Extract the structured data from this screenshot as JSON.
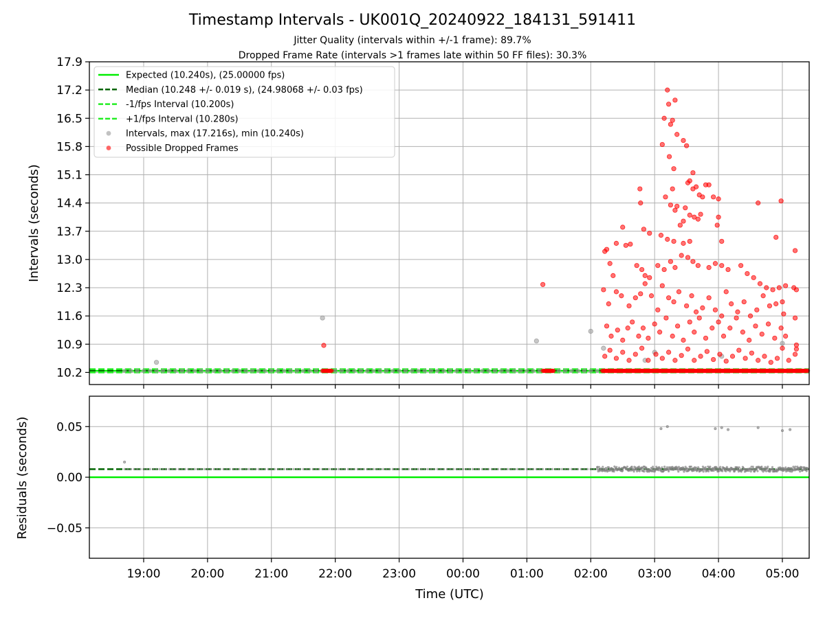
{
  "figure": {
    "title": "Timestamp Intervals - UK001Q_20240922_184131_591411",
    "subtitle_1": "Jitter Quality (intervals within +/-1 frame): 89.7%",
    "subtitle_2": "Dropped Frame Rate (intervals >1 frames late within 50 FF files): 30.3%"
  },
  "chart_data": [
    {
      "type": "scatter",
      "panel": "top",
      "ylabel": "Intervals (seconds)",
      "xlabel": "",
      "xlim_hours": [
        18.15,
        29.42
      ],
      "ylim": [
        9.9,
        17.9
      ],
      "yticks": [
        "10.2",
        "10.9",
        "11.6",
        "12.3",
        "13.0",
        "13.7",
        "14.4",
        "15.1",
        "15.8",
        "16.5",
        "17.2",
        "17.9"
      ],
      "ytick_values": [
        10.2,
        10.9,
        11.6,
        12.3,
        13.0,
        13.7,
        14.4,
        15.1,
        15.8,
        16.5,
        17.2,
        17.9
      ],
      "xticks": [
        "19:00",
        "20:00",
        "21:00",
        "22:00",
        "23:00",
        "00:00",
        "01:00",
        "02:00",
        "03:00",
        "04:00",
        "05:00"
      ],
      "xtick_values_hours": [
        19,
        20,
        21,
        22,
        23,
        24,
        25,
        26,
        27,
        28,
        29
      ],
      "grid": true,
      "legend_position": "top-left",
      "lines": [
        {
          "name": "Expected (10.240s), (25.00000 fps)",
          "y": 10.24,
          "color": "#00ee00",
          "style": "solid"
        },
        {
          "name": "Median (10.248 +/- 0.019 s), (24.98068 +/- 0.03 fps)",
          "y": 10.248,
          "color": "#006400",
          "style": "dashed"
        },
        {
          "name": "-1/fps Interval (10.200s)",
          "y": 10.2,
          "color": "#22ee22",
          "style": "dashed"
        },
        {
          "name": "+1/fps Interval (10.280s)",
          "y": 10.28,
          "color": "#22ee22",
          "style": "dashed"
        }
      ],
      "series": [
        {
          "name": "Intervals, max (17.216s), min (10.240s)",
          "color": "#999999",
          "baseline": {
            "y": 10.24,
            "from_hours": 18.7,
            "to_hours": 29.4,
            "step_hours": 0.1
          },
          "points": [
            [
              19.2,
              10.45
            ],
            [
              21.8,
              11.55
            ],
            [
              25.15,
              10.98
            ],
            [
              26.0,
              11.22
            ],
            [
              26.2,
              10.8
            ],
            [
              27.0,
              10.7
            ],
            [
              29.0,
              10.92
            ],
            [
              28.05,
              10.6
            ],
            [
              26.85,
              10.5
            ]
          ]
        },
        {
          "name": "Possible Dropped Frames",
          "color": "#ff0000",
          "dense_ranges": [
            {
              "y": 10.24,
              "from_hours": 21.8,
              "to_hours": 21.95
            },
            {
              "y": 10.24,
              "from_hours": 25.25,
              "to_hours": 25.42
            },
            {
              "y": 10.24,
              "from_hours": 26.18,
              "to_hours": 29.4
            }
          ],
          "points": [
            [
              21.82,
              10.87
            ],
            [
              25.25,
              12.38
            ],
            [
              27.2,
              17.2
            ],
            [
              27.22,
              16.85
            ],
            [
              27.32,
              16.95
            ],
            [
              27.15,
              16.5
            ],
            [
              27.28,
              16.45
            ],
            [
              27.25,
              16.35
            ],
            [
              27.35,
              16.1
            ],
            [
              27.45,
              15.95
            ],
            [
              27.5,
              15.82
            ],
            [
              27.12,
              15.85
            ],
            [
              27.23,
              15.55
            ],
            [
              27.3,
              15.25
            ],
            [
              27.6,
              15.15
            ],
            [
              27.52,
              14.9
            ],
            [
              27.55,
              14.95
            ],
            [
              27.6,
              14.75
            ],
            [
              27.65,
              14.8
            ],
            [
              27.28,
              14.75
            ],
            [
              27.7,
              14.6
            ],
            [
              27.75,
              14.55
            ],
            [
              27.8,
              14.85
            ],
            [
              27.85,
              14.85
            ],
            [
              27.92,
              14.55
            ],
            [
              28.0,
              14.5
            ],
            [
              28.62,
              14.4
            ],
            [
              28.98,
              14.45
            ],
            [
              26.77,
              14.75
            ],
            [
              26.78,
              14.4
            ],
            [
              27.17,
              14.55
            ],
            [
              27.25,
              14.35
            ],
            [
              27.32,
              14.22
            ],
            [
              27.35,
              14.32
            ],
            [
              27.48,
              14.28
            ],
            [
              27.55,
              14.1
            ],
            [
              27.62,
              14.05
            ],
            [
              27.68,
              14.0
            ],
            [
              27.72,
              14.12
            ],
            [
              28.0,
              14.05
            ],
            [
              27.98,
              13.85
            ],
            [
              27.45,
              13.95
            ],
            [
              27.4,
              13.85
            ],
            [
              26.83,
              13.75
            ],
            [
              26.92,
              13.65
            ],
            [
              27.1,
              13.6
            ],
            [
              27.2,
              13.5
            ],
            [
              27.3,
              13.45
            ],
            [
              27.45,
              13.4
            ],
            [
              27.55,
              13.45
            ],
            [
              28.05,
              13.45
            ],
            [
              28.9,
              13.55
            ],
            [
              26.5,
              13.8
            ],
            [
              26.62,
              13.38
            ],
            [
              26.55,
              13.35
            ],
            [
              26.4,
              13.4
            ],
            [
              26.25,
              13.25
            ],
            [
              26.22,
              13.2
            ],
            [
              26.3,
              12.9
            ],
            [
              26.35,
              12.6
            ],
            [
              26.72,
              12.85
            ],
            [
              26.8,
              12.75
            ],
            [
              26.85,
              12.6
            ],
            [
              26.92,
              12.55
            ],
            [
              27.05,
              12.85
            ],
            [
              27.15,
              12.75
            ],
            [
              27.25,
              12.95
            ],
            [
              27.32,
              12.8
            ],
            [
              27.42,
              13.1
            ],
            [
              27.52,
              13.05
            ],
            [
              27.6,
              12.95
            ],
            [
              27.68,
              12.85
            ],
            [
              27.85,
              12.8
            ],
            [
              27.95,
              12.9
            ],
            [
              28.05,
              12.85
            ],
            [
              28.15,
              12.75
            ],
            [
              28.35,
              12.85
            ],
            [
              28.45,
              12.65
            ],
            [
              28.55,
              12.55
            ],
            [
              28.65,
              12.4
            ],
            [
              28.75,
              12.3
            ],
            [
              28.85,
              12.25
            ],
            [
              28.95,
              12.3
            ],
            [
              29.05,
              12.35
            ],
            [
              29.2,
              13.22
            ],
            [
              29.22,
              12.25
            ],
            [
              26.2,
              12.25
            ],
            [
              26.28,
              11.9
            ],
            [
              26.4,
              12.2
            ],
            [
              26.48,
              12.1
            ],
            [
              26.6,
              11.85
            ],
            [
              26.7,
              12.05
            ],
            [
              26.78,
              12.15
            ],
            [
              26.85,
              12.4
            ],
            [
              26.95,
              12.1
            ],
            [
              27.05,
              11.75
            ],
            [
              27.12,
              12.35
            ],
            [
              27.22,
              12.05
            ],
            [
              27.3,
              11.95
            ],
            [
              27.38,
              12.2
            ],
            [
              27.5,
              11.85
            ],
            [
              27.58,
              12.1
            ],
            [
              27.65,
              11.7
            ],
            [
              27.75,
              11.8
            ],
            [
              27.85,
              12.05
            ],
            [
              27.95,
              11.75
            ],
            [
              28.05,
              11.6
            ],
            [
              28.12,
              12.2
            ],
            [
              28.2,
              11.9
            ],
            [
              28.3,
              11.7
            ],
            [
              28.4,
              11.95
            ],
            [
              28.5,
              11.6
            ],
            [
              28.6,
              11.75
            ],
            [
              28.7,
              12.1
            ],
            [
              28.8,
              11.85
            ],
            [
              28.9,
              11.9
            ],
            [
              29.0,
              11.95
            ],
            [
              29.02,
              11.65
            ],
            [
              29.2,
              11.55
            ],
            [
              29.18,
              12.3
            ],
            [
              26.25,
              11.35
            ],
            [
              26.32,
              11.1
            ],
            [
              26.42,
              11.25
            ],
            [
              26.5,
              11.0
            ],
            [
              26.58,
              11.3
            ],
            [
              26.65,
              11.45
            ],
            [
              26.75,
              11.1
            ],
            [
              26.82,
              11.3
            ],
            [
              26.9,
              11.05
            ],
            [
              27.0,
              11.4
            ],
            [
              27.08,
              11.2
            ],
            [
              27.18,
              11.55
            ],
            [
              27.28,
              11.1
            ],
            [
              27.36,
              11.35
            ],
            [
              27.45,
              11.0
            ],
            [
              27.55,
              11.45
            ],
            [
              27.62,
              11.2
            ],
            [
              27.7,
              11.55
            ],
            [
              27.8,
              11.05
            ],
            [
              27.9,
              11.3
            ],
            [
              28.0,
              11.45
            ],
            [
              28.08,
              11.1
            ],
            [
              28.18,
              11.3
            ],
            [
              28.28,
              11.55
            ],
            [
              28.38,
              11.2
            ],
            [
              28.48,
              11.0
            ],
            [
              28.58,
              11.35
            ],
            [
              28.68,
              11.15
            ],
            [
              28.78,
              11.4
            ],
            [
              28.88,
              11.05
            ],
            [
              28.98,
              11.3
            ],
            [
              29.05,
              11.1
            ],
            [
              29.22,
              10.88
            ],
            [
              26.22,
              10.6
            ],
            [
              26.3,
              10.75
            ],
            [
              26.4,
              10.55
            ],
            [
              26.5,
              10.7
            ],
            [
              26.6,
              10.5
            ],
            [
              26.7,
              10.65
            ],
            [
              26.8,
              10.8
            ],
            [
              26.9,
              10.5
            ],
            [
              27.02,
              10.65
            ],
            [
              27.12,
              10.55
            ],
            [
              27.22,
              10.7
            ],
            [
              27.32,
              10.5
            ],
            [
              27.42,
              10.62
            ],
            [
              27.52,
              10.78
            ],
            [
              27.62,
              10.5
            ],
            [
              27.72,
              10.6
            ],
            [
              27.82,
              10.72
            ],
            [
              27.92,
              10.52
            ],
            [
              28.02,
              10.65
            ],
            [
              28.12,
              10.48
            ],
            [
              28.22,
              10.6
            ],
            [
              28.32,
              10.75
            ],
            [
              28.42,
              10.55
            ],
            [
              28.52,
              10.68
            ],
            [
              28.62,
              10.5
            ],
            [
              28.72,
              10.6
            ],
            [
              28.82,
              10.45
            ],
            [
              28.92,
              10.55
            ],
            [
              29.0,
              10.8
            ],
            [
              29.1,
              10.5
            ],
            [
              29.2,
              10.65
            ],
            [
              29.22,
              10.78
            ]
          ]
        }
      ]
    },
    {
      "type": "scatter",
      "panel": "bottom",
      "ylabel": "Residuals (seconds)",
      "xlabel": "Time (UTC)",
      "xlim_hours": [
        18.15,
        29.42
      ],
      "ylim": [
        -0.08,
        0.08
      ],
      "yticks": [
        "0.05",
        "0.00",
        "−0.05"
      ],
      "ytick_values": [
        0.05,
        0.0,
        -0.05
      ],
      "xticks": [
        "19:00",
        "20:00",
        "21:00",
        "22:00",
        "23:00",
        "00:00",
        "01:00",
        "02:00",
        "03:00",
        "04:00",
        "05:00"
      ],
      "xtick_values_hours": [
        19,
        20,
        21,
        22,
        23,
        24,
        25,
        26,
        27,
        28,
        29
      ],
      "grid": true,
      "lines": [
        {
          "name": "Expected",
          "y": 0.0,
          "color": "#00ee00",
          "style": "solid"
        },
        {
          "name": "Median",
          "y": 0.008,
          "color": "#006400",
          "style": "dashed"
        }
      ],
      "series": [
        {
          "name": "Residuals",
          "color": "#808080",
          "baseline": {
            "y": 0.008,
            "from_hours": 18.7,
            "to_hours": 29.4,
            "step_hours": 0.05
          },
          "jitter_range": {
            "from_hours": 26.1,
            "to_hours": 29.4,
            "amplitude": 0.0025
          },
          "points": [
            [
              18.7,
              0.015
            ],
            [
              27.1,
              0.048
            ],
            [
              27.2,
              0.05
            ],
            [
              27.95,
              0.048
            ],
            [
              28.05,
              0.049
            ],
            [
              28.15,
              0.047
            ],
            [
              28.62,
              0.049
            ],
            [
              29.0,
              0.046
            ],
            [
              29.12,
              0.047
            ]
          ]
        }
      ]
    }
  ]
}
